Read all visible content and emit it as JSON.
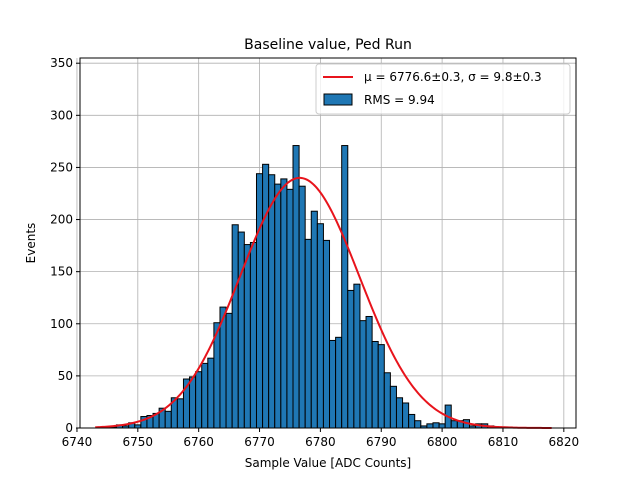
{
  "chart_data": {
    "type": "bar",
    "title": "Baseline value, Ped Run",
    "xlabel": "Sample Value [ADC Counts]",
    "ylabel": "Events",
    "xlim": [
      6740.5,
      6822
    ],
    "ylim": [
      0,
      355
    ],
    "x_ticks": [
      6740,
      6750,
      6760,
      6770,
      6780,
      6790,
      6800,
      6810,
      6820
    ],
    "y_ticks": [
      0,
      50,
      100,
      150,
      200,
      250,
      300,
      350
    ],
    "grid": true,
    "legend_position": "upper-right",
    "legend": {
      "fit_label": "μ = 6776.6±0.3, σ = 9.8±0.3",
      "hist_label": "RMS = 9.94"
    },
    "colors": {
      "bar": "#1f77b4",
      "fit": "#e8141c",
      "grid": "#b0b0b0"
    },
    "bin_width": 1,
    "bins": [
      {
        "x": 6745,
        "v": 1
      },
      {
        "x": 6746,
        "v": 1
      },
      {
        "x": 6747,
        "v": 3
      },
      {
        "x": 6748,
        "v": 2
      },
      {
        "x": 6749,
        "v": 5
      },
      {
        "x": 6750,
        "v": 3
      },
      {
        "x": 6751,
        "v": 11
      },
      {
        "x": 6752,
        "v": 12
      },
      {
        "x": 6753,
        "v": 14
      },
      {
        "x": 6754,
        "v": 19
      },
      {
        "x": 6755,
        "v": 16
      },
      {
        "x": 6756,
        "v": 29
      },
      {
        "x": 6757,
        "v": 28
      },
      {
        "x": 6758,
        "v": 47
      },
      {
        "x": 6759,
        "v": 49
      },
      {
        "x": 6760,
        "v": 54
      },
      {
        "x": 6761,
        "v": 62
      },
      {
        "x": 6762,
        "v": 67
      },
      {
        "x": 6763,
        "v": 101
      },
      {
        "x": 6764,
        "v": 116
      },
      {
        "x": 6765,
        "v": 110
      },
      {
        "x": 6766,
        "v": 195
      },
      {
        "x": 6767,
        "v": 188
      },
      {
        "x": 6768,
        "v": 176
      },
      {
        "x": 6769,
        "v": 178
      },
      {
        "x": 6770,
        "v": 244
      },
      {
        "x": 6771,
        "v": 253
      },
      {
        "x": 6772,
        "v": 243
      },
      {
        "x": 6773,
        "v": 234
      },
      {
        "x": 6774,
        "v": 239
      },
      {
        "x": 6775,
        "v": 229
      },
      {
        "x": 6776,
        "v": 271
      },
      {
        "x": 6777,
        "v": 232
      },
      {
        "x": 6778,
        "v": 181
      },
      {
        "x": 6779,
        "v": 208
      },
      {
        "x": 6780,
        "v": 196
      },
      {
        "x": 6781,
        "v": 180
      },
      {
        "x": 6782,
        "v": 84
      },
      {
        "x": 6783,
        "v": 87
      },
      {
        "x": 6784,
        "v": 271
      },
      {
        "x": 6785,
        "v": 132
      },
      {
        "x": 6786,
        "v": 138
      },
      {
        "x": 6787,
        "v": 103
      },
      {
        "x": 6788,
        "v": 107
      },
      {
        "x": 6789,
        "v": 83
      },
      {
        "x": 6790,
        "v": 80
      },
      {
        "x": 6791,
        "v": 53
      },
      {
        "x": 6792,
        "v": 40
      },
      {
        "x": 6793,
        "v": 29
      },
      {
        "x": 6794,
        "v": 24
      },
      {
        "x": 6795,
        "v": 13
      },
      {
        "x": 6796,
        "v": 7
      },
      {
        "x": 6797,
        "v": 2
      },
      {
        "x": 6798,
        "v": 4
      },
      {
        "x": 6799,
        "v": 5
      },
      {
        "x": 6800,
        "v": 4
      },
      {
        "x": 6801,
        "v": 22
      },
      {
        "x": 6802,
        "v": 7
      },
      {
        "x": 6803,
        "v": 7
      },
      {
        "x": 6804,
        "v": 8
      },
      {
        "x": 6805,
        "v": 2
      },
      {
        "x": 6806,
        "v": 4
      },
      {
        "x": 6807,
        "v": 4
      },
      {
        "x": 6808,
        "v": 2
      },
      {
        "x": 6809,
        "v": 1
      },
      {
        "x": 6810,
        "v": 1
      },
      {
        "x": 6811,
        "v": 1
      }
    ],
    "fit": {
      "mu": 6776.6,
      "sigma": 9.8,
      "amplitude": 240,
      "x_range": [
        6743,
        6818
      ]
    }
  }
}
